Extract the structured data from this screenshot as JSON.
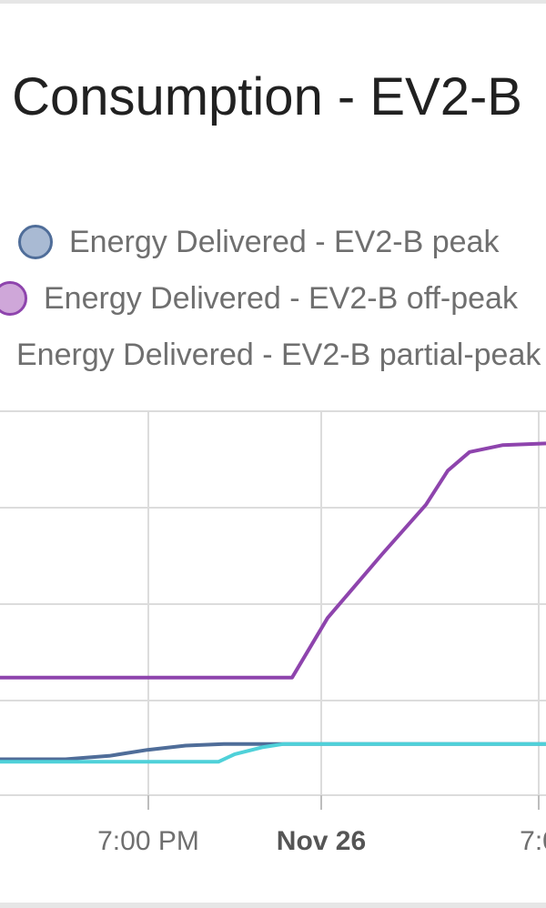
{
  "chart_data": {
    "type": "line",
    "title": "Consumption - EV2-B",
    "x_tick_labels": [
      "7:00 PM",
      "Nov 26",
      "7:0"
    ],
    "series": [
      {
        "name": "Energy Delivered - EV2-B peak",
        "color": "#4f6d99",
        "fill": "#a9bad3",
        "points": [
          [
            0,
            0.39
          ],
          [
            0.12,
            0.39
          ],
          [
            0.2,
            0.43
          ],
          [
            0.27,
            0.5
          ],
          [
            0.34,
            0.55
          ],
          [
            0.41,
            0.57
          ],
          [
            0.55,
            0.57
          ],
          [
            0.7,
            0.57
          ],
          [
            1.0,
            0.57
          ]
        ]
      },
      {
        "name": "Energy Delivered - EV2-B off-peak",
        "color": "#8e44ad",
        "fill": "#cfa7d9",
        "points": [
          [
            0,
            1.35
          ],
          [
            0.535,
            1.35
          ],
          [
            0.6,
            2.05
          ],
          [
            0.7,
            2.8
          ],
          [
            0.78,
            3.38
          ],
          [
            0.82,
            3.78
          ],
          [
            0.86,
            4.0
          ],
          [
            0.92,
            4.08
          ],
          [
            1.0,
            4.1
          ]
        ]
      },
      {
        "name": "Energy Delivered - EV2-B partial-peak",
        "color": "#4fd1d9",
        "fill": "#b8eef1",
        "points": [
          [
            0,
            0.36
          ],
          [
            0.4,
            0.36
          ],
          [
            0.43,
            0.45
          ],
          [
            0.48,
            0.53
          ],
          [
            0.52,
            0.57
          ],
          [
            1.0,
            0.57
          ]
        ]
      }
    ],
    "ylim": [
      0,
      4.5
    ],
    "grid": true,
    "legend_position": "top"
  }
}
